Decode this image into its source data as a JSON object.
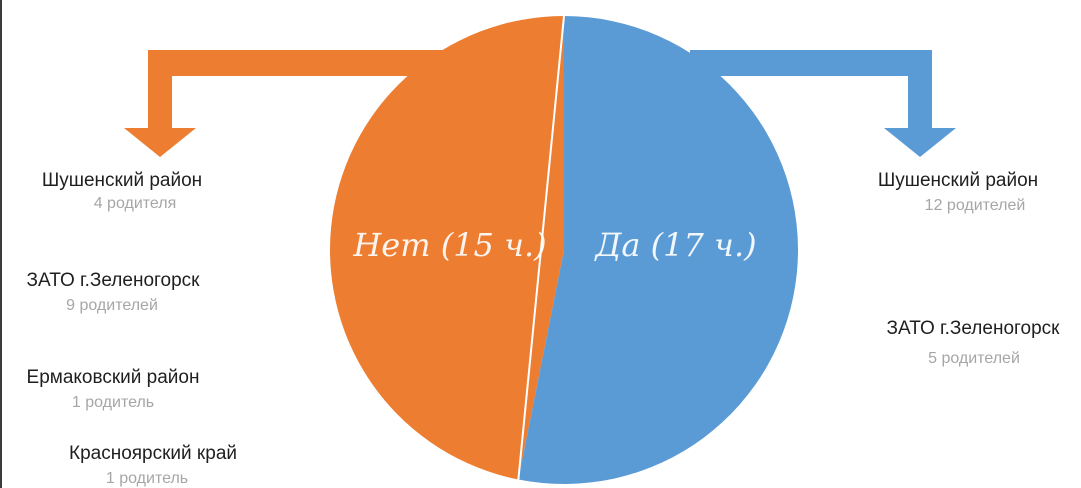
{
  "chart_data": {
    "type": "pie",
    "series": [
      {
        "label": "Нет (15 ч.)",
        "value": 15,
        "color": "#ED7D31",
        "breakdown": [
          {
            "region": "Шушенский район",
            "count": "4 родителя"
          },
          {
            "region": "ЗАТО г.Зеленогорск",
            "count": "9 родителей"
          },
          {
            "region": "Ермаковский район",
            "count": "1 родитель"
          },
          {
            "region": "Красноярский край",
            "count": "1 родитель"
          }
        ]
      },
      {
        "label": "Да (17 ч.)",
        "value": 17,
        "color": "#5B9BD5",
        "breakdown": [
          {
            "region": "Шушенский район",
            "count": "12 родителей"
          },
          {
            "region": "ЗАТО г.Зеленогорск",
            "count": "5 родителей"
          }
        ]
      }
    ]
  }
}
